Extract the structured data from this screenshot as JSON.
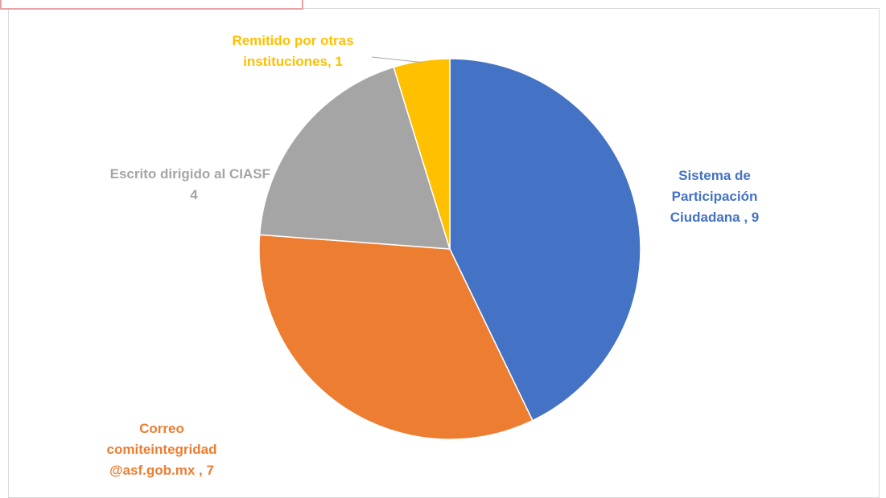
{
  "chart_data": {
    "type": "pie",
    "values": [
      9,
      7,
      4,
      1
    ],
    "value_labels": [
      "Sistema de Participación Ciudadana , 9",
      "Correo comiteintegridad @asf.gob.mx , 7",
      "Escrito dirigido al CIASF , 4",
      "Remitido por otras instituciones, 1"
    ],
    "colors": [
      "#4472c4",
      "#ed7d31",
      "#a5a5a5",
      "#ffc000"
    ]
  }
}
